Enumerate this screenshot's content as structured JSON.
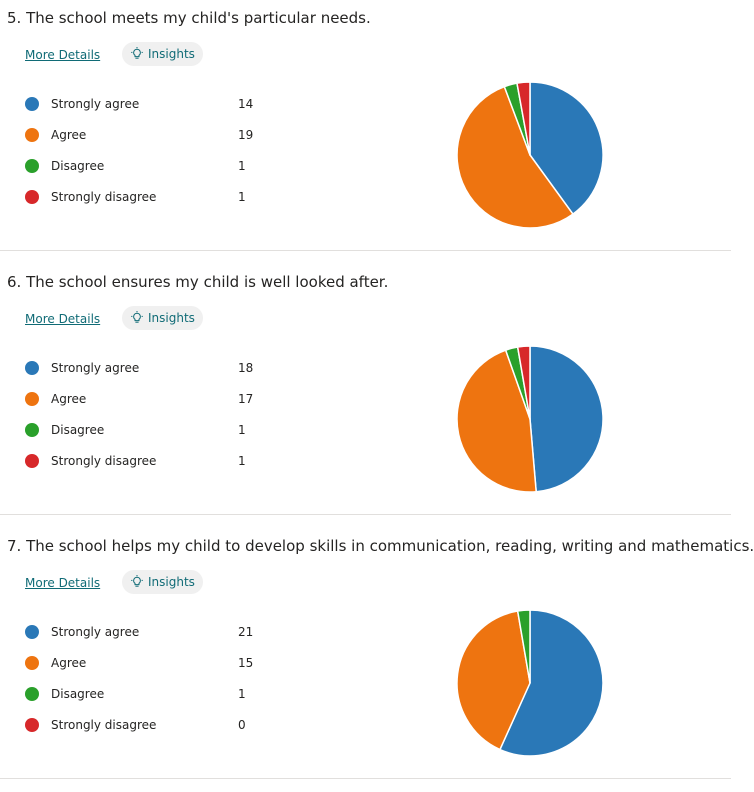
{
  "colors": {
    "strongly_agree": "#2a78b7",
    "agree": "#ee7410",
    "disagree": "#2aa02b",
    "strongly_disagree": "#d7282a"
  },
  "ui": {
    "more_details": "More Details",
    "insights": "Insights",
    "insights_icon": "lightbulb-icon"
  },
  "questions": [
    {
      "title": "5. The school meets my child's particular needs.",
      "legend": [
        {
          "label": "Strongly agree",
          "count": "14"
        },
        {
          "label": "Agree",
          "count": "19"
        },
        {
          "label": "Disagree",
          "count": "1"
        },
        {
          "label": "Strongly disagree",
          "count": "1"
        }
      ]
    },
    {
      "title": "6. The school ensures my child is well looked after.",
      "legend": [
        {
          "label": "Strongly agree",
          "count": "18"
        },
        {
          "label": "Agree",
          "count": "17"
        },
        {
          "label": "Disagree",
          "count": "1"
        },
        {
          "label": "Strongly disagree",
          "count": "1"
        }
      ]
    },
    {
      "title": "7. The school helps my child to develop skills in communication, reading, writing and mathematics.",
      "legend": [
        {
          "label": "Strongly agree",
          "count": "21"
        },
        {
          "label": "Agree",
          "count": "15"
        },
        {
          "label": "Disagree",
          "count": "1"
        },
        {
          "label": "Strongly disagree",
          "count": "0"
        }
      ]
    }
  ],
  "chart_data": [
    {
      "type": "pie",
      "title": "5. The school meets my child's particular needs.",
      "categories": [
        "Strongly agree",
        "Agree",
        "Disagree",
        "Strongly disagree"
      ],
      "values": [
        14,
        19,
        1,
        1
      ],
      "legend": "left"
    },
    {
      "type": "pie",
      "title": "6. The school ensures my child is well looked after.",
      "categories": [
        "Strongly agree",
        "Agree",
        "Disagree",
        "Strongly disagree"
      ],
      "values": [
        18,
        17,
        1,
        1
      ],
      "legend": "left"
    },
    {
      "type": "pie",
      "title": "7. The school helps my child to develop skills in communication, reading, writing and mathematics.",
      "categories": [
        "Strongly agree",
        "Agree",
        "Disagree",
        "Strongly disagree"
      ],
      "values": [
        21,
        15,
        1,
        0
      ],
      "legend": "left"
    }
  ]
}
